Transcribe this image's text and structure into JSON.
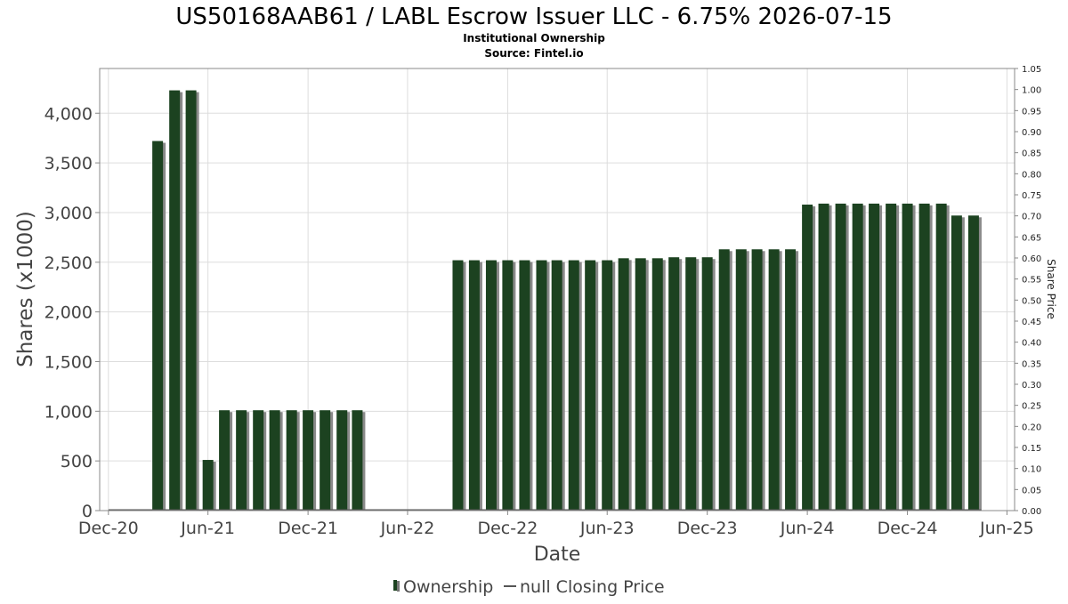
{
  "chart_data": {
    "type": "bar",
    "title": "US50168AAB61 / LABL Escrow Issuer LLC - 6.75% 2026-07-15",
    "subtitle_lines": [
      "Institutional Ownership",
      "Source: Fintel.io"
    ],
    "xlabel": "Date",
    "ylabel": "Shares (x1000)",
    "y2label": "Share Price",
    "ylim": [
      0,
      4450
    ],
    "y2lim": [
      0,
      1.05
    ],
    "xlim": [
      "2020-11-15",
      "2025-06-15"
    ],
    "x_ticks": [
      {
        "date": "2020-12-01",
        "label": "Dec-20"
      },
      {
        "date": "2021-06-01",
        "label": "Jun-21"
      },
      {
        "date": "2021-12-01",
        "label": "Dec-21"
      },
      {
        "date": "2022-06-01",
        "label": "Jun-22"
      },
      {
        "date": "2022-12-01",
        "label": "Dec-22"
      },
      {
        "date": "2023-06-01",
        "label": "Jun-23"
      },
      {
        "date": "2023-12-01",
        "label": "Dec-23"
      },
      {
        "date": "2024-06-01",
        "label": "Jun-24"
      },
      {
        "date": "2024-12-01",
        "label": "Dec-24"
      },
      {
        "date": "2025-06-01",
        "label": "Jun-25"
      }
    ],
    "y_ticks": [
      {
        "value": 0,
        "label": "0"
      },
      {
        "value": 500,
        "label": "500"
      },
      {
        "value": 1000,
        "label": "1,000"
      },
      {
        "value": 1500,
        "label": "1,500"
      },
      {
        "value": 2000,
        "label": "2,000"
      },
      {
        "value": 2500,
        "label": "2,500"
      },
      {
        "value": 3000,
        "label": "3,000"
      },
      {
        "value": 3500,
        "label": "3,500"
      },
      {
        "value": 4000,
        "label": "4,000"
      }
    ],
    "y2_ticks": [
      "0.00",
      "0.05",
      "0.10",
      "0.15",
      "0.20",
      "0.25",
      "0.30",
      "0.35",
      "0.40",
      "0.45",
      "0.50",
      "0.55",
      "0.60",
      "0.65",
      "0.70",
      "0.75",
      "0.80",
      "0.85",
      "0.90",
      "0.95",
      "1.00",
      "1.05"
    ],
    "grid": true,
    "legend_position": "bottom",
    "series": [
      {
        "name": "Ownership",
        "color": "#1c4220",
        "points": [
          {
            "date": "2021-03-01",
            "value": 3720
          },
          {
            "date": "2021-04-01",
            "value": 4230
          },
          {
            "date": "2021-05-01",
            "value": 4230
          },
          {
            "date": "2021-06-01",
            "value": 510
          },
          {
            "date": "2021-07-01",
            "value": 1010
          },
          {
            "date": "2021-08-01",
            "value": 1010
          },
          {
            "date": "2021-09-01",
            "value": 1010
          },
          {
            "date": "2021-10-01",
            "value": 1010
          },
          {
            "date": "2021-11-01",
            "value": 1010
          },
          {
            "date": "2021-12-01",
            "value": 1010
          },
          {
            "date": "2022-01-01",
            "value": 1010
          },
          {
            "date": "2022-02-01",
            "value": 1010
          },
          {
            "date": "2022-03-01",
            "value": 1010
          },
          {
            "date": "2022-09-01",
            "value": 2520
          },
          {
            "date": "2022-10-01",
            "value": 2520
          },
          {
            "date": "2022-11-01",
            "value": 2520
          },
          {
            "date": "2022-12-01",
            "value": 2520
          },
          {
            "date": "2023-01-01",
            "value": 2520
          },
          {
            "date": "2023-02-01",
            "value": 2520
          },
          {
            "date": "2023-03-01",
            "value": 2520
          },
          {
            "date": "2023-04-01",
            "value": 2520
          },
          {
            "date": "2023-05-01",
            "value": 2520
          },
          {
            "date": "2023-06-01",
            "value": 2520
          },
          {
            "date": "2023-07-01",
            "value": 2540
          },
          {
            "date": "2023-08-01",
            "value": 2540
          },
          {
            "date": "2023-09-01",
            "value": 2540
          },
          {
            "date": "2023-10-01",
            "value": 2550
          },
          {
            "date": "2023-11-01",
            "value": 2550
          },
          {
            "date": "2023-12-01",
            "value": 2550
          },
          {
            "date": "2024-01-01",
            "value": 2630
          },
          {
            "date": "2024-02-01",
            "value": 2630
          },
          {
            "date": "2024-03-01",
            "value": 2630
          },
          {
            "date": "2024-04-01",
            "value": 2630
          },
          {
            "date": "2024-05-01",
            "value": 2630
          },
          {
            "date": "2024-06-01",
            "value": 3080
          },
          {
            "date": "2024-07-01",
            "value": 3090
          },
          {
            "date": "2024-08-01",
            "value": 3090
          },
          {
            "date": "2024-09-01",
            "value": 3090
          },
          {
            "date": "2024-10-01",
            "value": 3090
          },
          {
            "date": "2024-11-01",
            "value": 3090
          },
          {
            "date": "2024-12-01",
            "value": 3090
          },
          {
            "date": "2025-01-01",
            "value": 3090
          },
          {
            "date": "2025-02-01",
            "value": 3090
          },
          {
            "date": "2025-03-01",
            "value": 2970
          },
          {
            "date": "2025-04-01",
            "value": 2970
          }
        ]
      },
      {
        "name": "null Closing Price",
        "color": "#555555",
        "points": []
      }
    ]
  }
}
